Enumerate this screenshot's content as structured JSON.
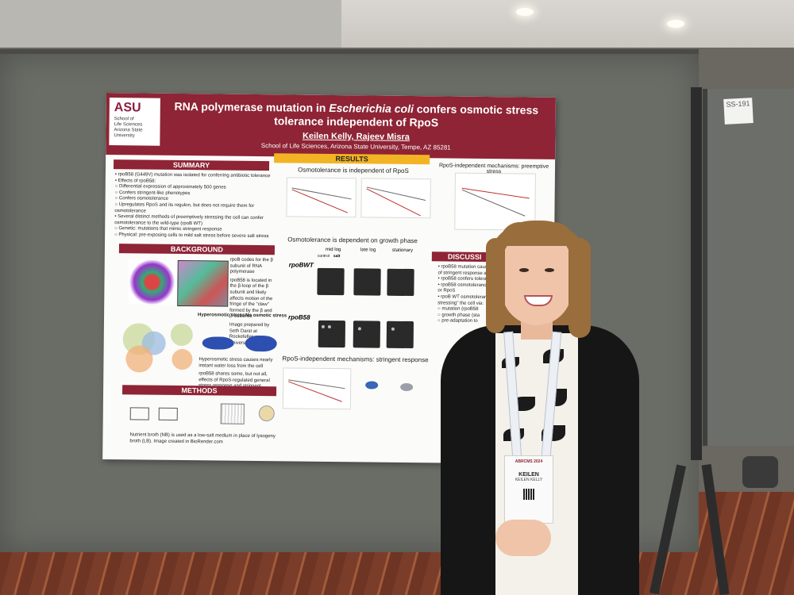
{
  "poster": {
    "logo": {
      "mark": "ASU",
      "lines": [
        "School of",
        "Life Sciences",
        "Arizona State",
        "University"
      ]
    },
    "title_part1": "RNA polymerase mutation in ",
    "title_italic": "Escherichia coli",
    "title_part2": " confers osmotic stress tolerance independent of RpoS",
    "authors": "Keilen Kelly, Rajeev Misra",
    "affiliation": "School of Life Sciences, Arizona State University, Tempe, AZ 85281",
    "sections": {
      "summary": "SUMMARY",
      "results": "RESULTS",
      "background": "BACKGROUND",
      "methods": "METHODS",
      "discussion": "DISCUSSI"
    },
    "summary_items": [
      "• rpoB58 (G449V) mutation was isolated for conferring antibiotic tolerance",
      "• Effects of rpoB58:",
      "   ○ Differential expression of approximately 500 genes",
      "   ○ Confers stringent-like phenotypes",
      "   ○ Confers osmotolerance",
      "   ○ Upregulates RpoS and its regulon, but does not require them for osmotolerance",
      "• Several distinct methods of preemptively stressing the cell can confer osmotolerance to the wild-type (rpoB WT)",
      "   ○ Genetic: mutations that mimic stringent response",
      "   ○ Physical: pre-exposing cells to mild salt stress before severe salt stress"
    ],
    "results": {
      "osmo_heading": "Osmotolerance is independent of RpoS",
      "growth_heading": "Osmotolerance is dependent on growth phase",
      "stringent_heading": "RpoS-independent mechanisms: stringent response",
      "preemptive_heading": "RpoS-independent mechanisms: preemptive stress",
      "phases": [
        "mid log",
        "late log",
        "stationary"
      ],
      "conditions": [
        "control",
        "salt"
      ],
      "strains": [
        "rpoBWT",
        "rpoB58"
      ]
    },
    "background_text": [
      "rpoB codes for the β subunit of RNA polymerase",
      "rpoB58 is located in the β-loop of the β subunit and likely affects motion of the fringe of the \"claw\" formed by the β and β' subunits",
      "Image prepared by Seth Darst at Rockefeller University"
    ],
    "background_labels": [
      "Hyperosmotic stress",
      "No osmotic stress"
    ],
    "background_caption": "Hyperosmotic stress causes nearly instant water loss from the cell",
    "venn_caption": "rpoB58 shares some, but not all, effects of RpoS-regulated general stress response and stringent response (SR) on gene expression",
    "methods_note": "Nutrient broth (NB) is used as a low-salt medium in place of lysogeny broth (LB). Image created in BioRender.com",
    "discussion_items": [
      "• rpoB58 mutation causes pol",
      "  of stringent response and R",
      "• rpoB58 confers tolerance to",
      "• rpoB58 osmotolerance is in",
      "  or RpoS",
      "• rpoB WT osmotolerance c",
      "  stressing\" the cell via:",
      "  ○ mutation (rpoB58",
      "  ○ growth phase (sta",
      "  ○ pre-adaptation to"
    ]
  },
  "badge": {
    "event": "ABRCMS 2024",
    "first_name": "KEILEN",
    "full_name": "KEILEN KELLY"
  },
  "board_number": "SS-191",
  "colors": {
    "maroon": "#8e2435",
    "gold": "#f2b424",
    "board_gray": "#6a6c66",
    "carpet": "#7a3d2a"
  }
}
